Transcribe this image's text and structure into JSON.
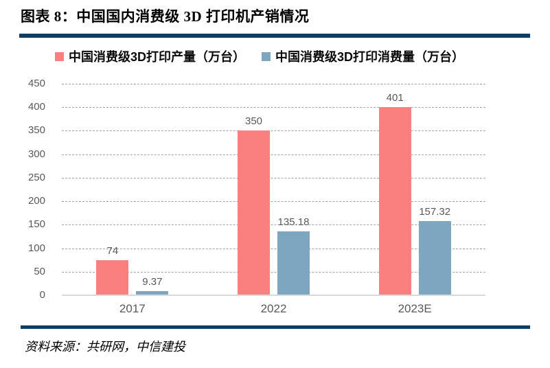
{
  "header": {
    "title": "图表 8：中国国内消费级 3D 打印机产销情况"
  },
  "footer": {
    "source": "资料来源：共研网，中信建投"
  },
  "colors": {
    "rule": "#0E3E62",
    "production_bar": "#FA8080",
    "consumption_bar": "#7EA6C0",
    "gridline": "#A3A3A3",
    "axis_line": "#D9D9D9",
    "tick_text": "#595959"
  },
  "chart_data": {
    "type": "bar",
    "title": "",
    "categories": [
      "2017",
      "2022",
      "2023E"
    ],
    "series": [
      {
        "name": "中国消费级3D打印产量（万台）",
        "color": "#FA8080",
        "values": [
          74,
          350,
          401
        ]
      },
      {
        "name": "中国消费级3D打印消费量（万台）",
        "color": "#7EA6C0",
        "values": [
          9.37,
          135.18,
          157.32
        ]
      }
    ],
    "xlabel": "",
    "ylabel": "",
    "ylim": [
      0,
      450
    ],
    "ytick_step": 50,
    "grid": "horizontal-dashed",
    "legend_position": "top",
    "data_labels": true
  }
}
